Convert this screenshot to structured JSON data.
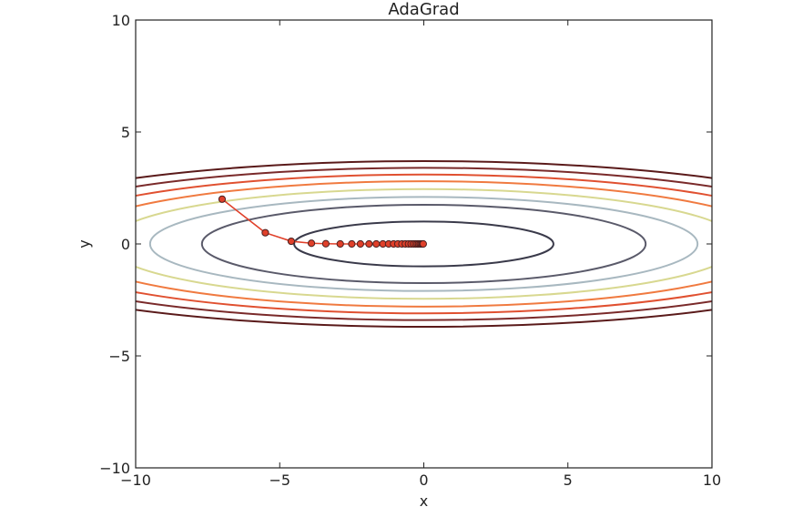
{
  "chart_data": {
    "type": "line",
    "title": "AdaGrad",
    "xlabel": "x",
    "ylabel": "y",
    "xlim": [
      -10,
      10
    ],
    "ylim": [
      -10,
      10
    ],
    "x_ticks": [
      -10,
      -5,
      0,
      5,
      10
    ],
    "y_ticks": [
      -10,
      -5,
      0,
      5,
      10
    ],
    "x_tick_labels": [
      "−10",
      "−5",
      "0",
      "5",
      "10"
    ],
    "y_tick_labels": [
      "−10",
      "−5",
      "0",
      "5",
      "10"
    ],
    "grid": false,
    "contour": {
      "function": "x^2/20 + y^2",
      "levels": [
        {
          "x_radius": 4.5,
          "y_radius": 1.0,
          "color": "#3a3a4a"
        },
        {
          "x_radius": 7.7,
          "y_radius": 1.75,
          "color": "#5a5a6a"
        },
        {
          "x_radius": 9.5,
          "y_radius": 2.1,
          "color": "#a8b8c0"
        },
        {
          "x_radius": 11.0,
          "y_radius": 2.45,
          "color": "#d8d890"
        },
        {
          "x_radius": 12.5,
          "y_radius": 2.8,
          "color": "#f07a40"
        },
        {
          "x_radius": 13.9,
          "y_radius": 3.1,
          "color": "#e05030"
        },
        {
          "x_radius": 15.2,
          "y_radius": 3.4,
          "color": "#7a2a2a"
        },
        {
          "x_radius": 16.5,
          "y_radius": 3.7,
          "color": "#5a1a1a"
        }
      ]
    },
    "series": [
      {
        "color": "#e0402a",
        "x": [
          -7.0,
          -5.5,
          -4.6,
          -3.9,
          -3.4,
          -2.9,
          -2.5,
          -2.2,
          -1.9,
          -1.65,
          -1.42,
          -1.22,
          -1.05,
          -0.9,
          -0.76,
          -0.64,
          -0.53,
          -0.44,
          -0.36,
          -0.29,
          -0.23,
          -0.18,
          -0.13,
          -0.09,
          -0.05,
          -0.02
        ],
        "y": [
          2.0,
          0.5,
          0.12,
          0.03,
          0.01,
          0.0,
          0.0,
          0.0,
          0.0,
          0.0,
          0.0,
          0.0,
          0.0,
          0.0,
          0.0,
          0.0,
          0.0,
          0.0,
          0.0,
          0.0,
          0.0,
          0.0,
          0.0,
          0.0,
          0.0,
          0.0
        ]
      }
    ]
  }
}
